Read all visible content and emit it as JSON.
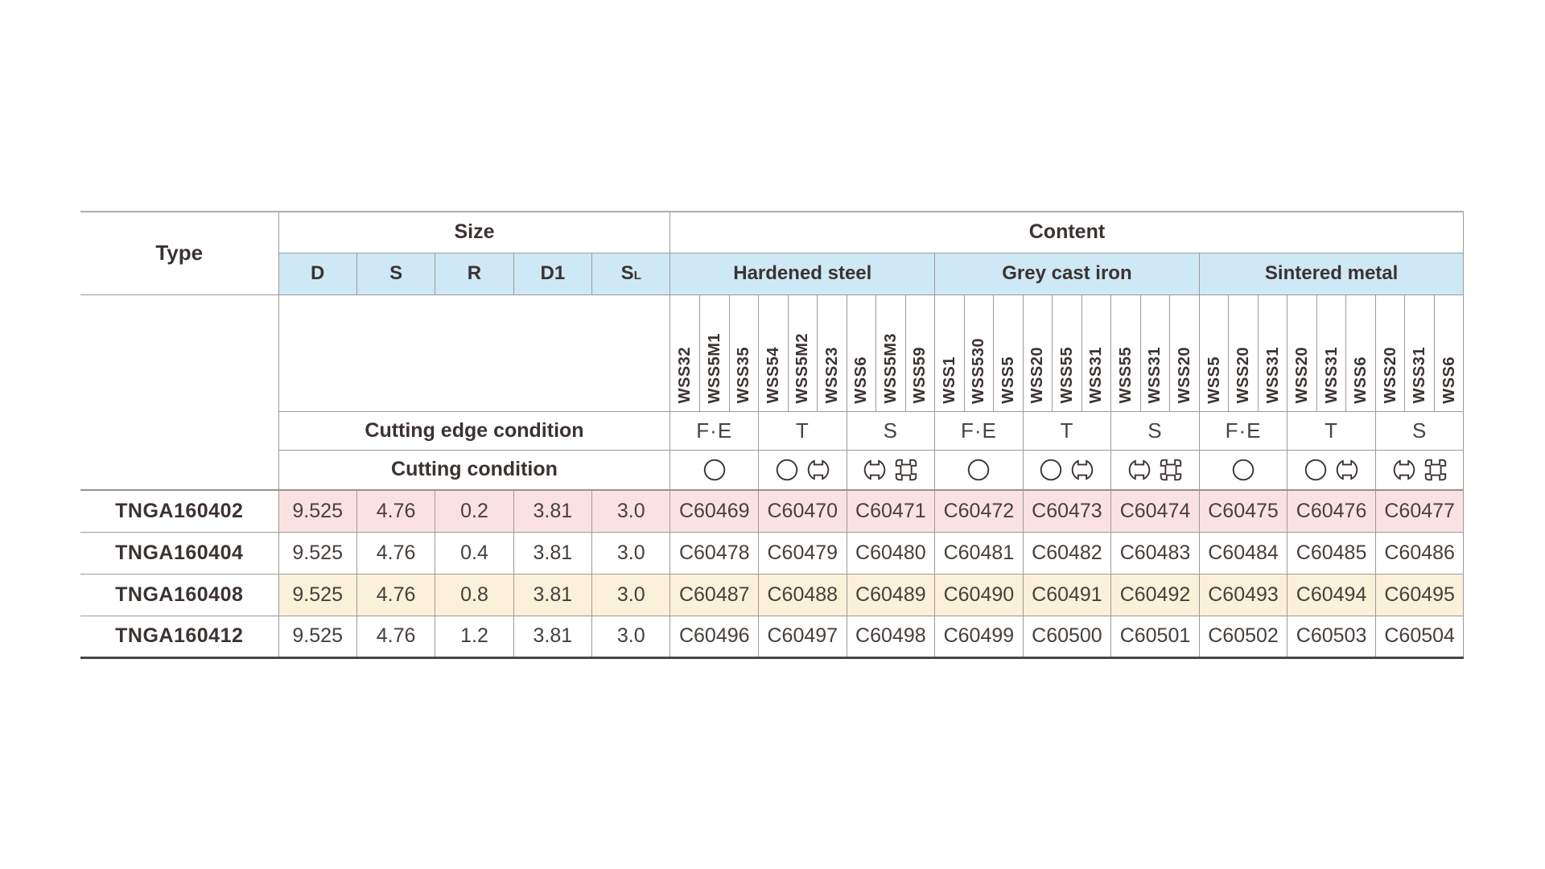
{
  "table": {
    "headers": {
      "type": "Type",
      "size": "Size",
      "content": "Content"
    },
    "size_columns": [
      {
        "main": "D",
        "sub": ""
      },
      {
        "main": "S",
        "sub": ""
      },
      {
        "main": "R",
        "sub": ""
      },
      {
        "main": "D1",
        "sub": ""
      },
      {
        "main": "S",
        "sub": "L"
      }
    ],
    "material_groups": [
      {
        "name": "Hardened steel",
        "grades": [
          "WSS32",
          "WSS5M1",
          "WSS35",
          "WSS54",
          "WSS5M2",
          "WSS23",
          "WSS6",
          "WSS5M3",
          "WSS59"
        ]
      },
      {
        "name": "Grey cast iron",
        "grades": [
          "WSS1",
          "WSS530",
          "WSS5",
          "WSS20",
          "WSS55",
          "WSS31",
          "WSS55",
          "WSS31",
          "WSS20"
        ]
      },
      {
        "name": "Sintered metal",
        "grades": [
          "WSS5",
          "WSS20",
          "WSS31",
          "WSS20",
          "WSS31",
          "WSS6",
          "WSS20",
          "WSS31",
          "WSS6"
        ]
      }
    ],
    "edge_condition_label": "Cutting edge condition",
    "cutting_condition_label": "Cutting condition",
    "edge_conditions": [
      "F·E",
      "T",
      "S",
      "F·E",
      "T",
      "S",
      "F·E",
      "T",
      "S"
    ],
    "cutting_conditions": [
      [
        "continuous"
      ],
      [
        "continuous",
        "interrupted"
      ],
      [
        "interrupted",
        "heavy-interrupted"
      ],
      [
        "continuous"
      ],
      [
        "continuous",
        "interrupted"
      ],
      [
        "interrupted",
        "heavy-interrupted"
      ],
      [
        "continuous"
      ],
      [
        "continuous",
        "interrupted"
      ],
      [
        "interrupted",
        "heavy-interrupted"
      ]
    ],
    "rows": [
      {
        "type": "TNGA160402",
        "highlight": "pink",
        "size": [
          "9.525",
          "4.76",
          "0.2",
          "3.81",
          "3.0"
        ],
        "codes": [
          "C60469",
          "C60470",
          "C60471",
          "C60472",
          "C60473",
          "C60474",
          "C60475",
          "C60476",
          "C60477"
        ]
      },
      {
        "type": "TNGA160404",
        "highlight": "none",
        "size": [
          "9.525",
          "4.76",
          "0.4",
          "3.81",
          "3.0"
        ],
        "codes": [
          "C60478",
          "C60479",
          "C60480",
          "C60481",
          "C60482",
          "C60483",
          "C60484",
          "C60485",
          "C60486"
        ]
      },
      {
        "type": "TNGA160408",
        "highlight": "cream",
        "size": [
          "9.525",
          "4.76",
          "0.8",
          "3.81",
          "3.0"
        ],
        "codes": [
          "C60487",
          "C60488",
          "C60489",
          "C60490",
          "C60491",
          "C60492",
          "C60493",
          "C60494",
          "C60495"
        ]
      },
      {
        "type": "TNGA160412",
        "highlight": "none",
        "size": [
          "9.525",
          "4.76",
          "1.2",
          "3.81",
          "3.0"
        ],
        "codes": [
          "C60496",
          "C60497",
          "C60498",
          "C60499",
          "C60500",
          "C60501",
          "C60502",
          "C60503",
          "C60504"
        ]
      }
    ],
    "colors": {
      "header_blue": "#cfe8f6",
      "row_pink": "#fbe2e2",
      "row_cream": "#fbf0da",
      "grid_line": "#9e9b98",
      "text": "#3b3331"
    }
  }
}
